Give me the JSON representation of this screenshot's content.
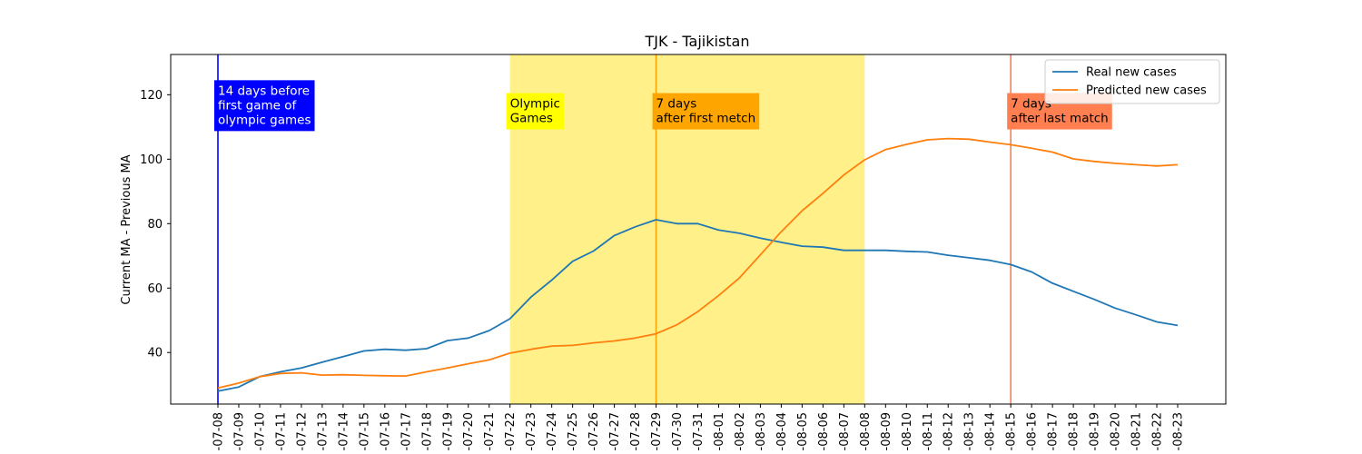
{
  "chart_data": {
    "type": "line",
    "title": "TJK - Tajikistan",
    "xlabel": "",
    "ylabel": "Current MA - Previous MA",
    "ylim": [
      24,
      132.5
    ],
    "yticks": [
      40,
      60,
      80,
      100,
      120
    ],
    "grid": false,
    "legend_position": "top-right",
    "categories": [
      "-07-08",
      "-07-09",
      "-07-10",
      "-07-11",
      "-07-12",
      "-07-13",
      "-07-14",
      "-07-15",
      "-07-16",
      "-07-17",
      "-07-18",
      "-07-19",
      "-07-20",
      "-07-21",
      "-07-22",
      "-07-23",
      "-07-24",
      "-07-25",
      "-07-26",
      "-07-27",
      "-07-28",
      "-07-29",
      "-07-30",
      "-07-31",
      "-08-01",
      "-08-02",
      "-08-03",
      "-08-04",
      "-08-05",
      "-08-06",
      "-08-07",
      "-08-08",
      "-08-09",
      "-08-10",
      "-08-11",
      "-08-12",
      "-08-13",
      "-08-14",
      "-08-15",
      "-08-16",
      "-08-17",
      "-08-18",
      "-08-19",
      "-08-20",
      "-08-21",
      "-08-22",
      "-08-23"
    ],
    "series": [
      {
        "name": "Real new cases",
        "color": "#1f77b4",
        "values": [
          28.0,
          29.3,
          32.5,
          34.0,
          35.2,
          37.0,
          38.7,
          40.5,
          41.0,
          40.7,
          41.2,
          43.7,
          44.5,
          46.8,
          50.5,
          57.2,
          62.5,
          68.3,
          71.5,
          76.3,
          79.0,
          81.2,
          80.0,
          80.0,
          78.0,
          77.0,
          75.5,
          74.2,
          73.0,
          72.7,
          71.7,
          71.7,
          71.7,
          71.4,
          71.2,
          70.2,
          69.4,
          68.6,
          67.3,
          65.0,
          61.5,
          59.0,
          56.5,
          53.8,
          51.7,
          49.5,
          48.4
        ]
      },
      {
        "name": "Predicted new cases",
        "color": "#ff7f0e",
        "values": [
          29.0,
          30.5,
          32.5,
          33.5,
          33.7,
          33.0,
          33.1,
          32.9,
          32.8,
          32.7,
          34.0,
          35.2,
          36.5,
          37.7,
          39.8,
          41.0,
          42.0,
          42.2,
          43.0,
          43.6,
          44.5,
          45.8,
          48.6,
          52.7,
          57.7,
          63.2,
          70.3,
          77.5,
          84.0,
          89.4,
          95.1,
          99.8,
          103.0,
          104.6,
          106.0,
          106.4,
          106.2,
          105.3,
          104.5,
          103.4,
          102.2,
          100.1,
          99.3,
          98.7,
          98.3,
          97.9,
          98.3
        ]
      }
    ],
    "shaded_region": {
      "from": "-07-22",
      "to": "-08-08",
      "color": "#fff08a"
    },
    "vlines": [
      {
        "at": "-07-08",
        "color": "#0000ff"
      },
      {
        "at": "-07-29",
        "color": "#ffa500"
      },
      {
        "at": "-08-15",
        "color": "#ff7f50"
      }
    ],
    "annotations": [
      {
        "lines": [
          "14 days before",
          "first game of",
          "olympic games"
        ],
        "bg": "#0000ff",
        "fg": "#ffffff",
        "at": "-07-08",
        "y": 120
      },
      {
        "lines": [
          "Olympic",
          "Games"
        ],
        "bg": "#ffff00",
        "fg": "#000000",
        "at": "-07-22",
        "y": 116
      },
      {
        "lines": [
          "7 days",
          "after first metch"
        ],
        "bg": "#ffa500",
        "fg": "#000000",
        "at": "-07-29",
        "y": 116
      },
      {
        "lines": [
          "7 days",
          "after last match"
        ],
        "bg": "#ff7f50",
        "fg": "#000000",
        "at": "-08-15",
        "y": 116
      }
    ]
  }
}
